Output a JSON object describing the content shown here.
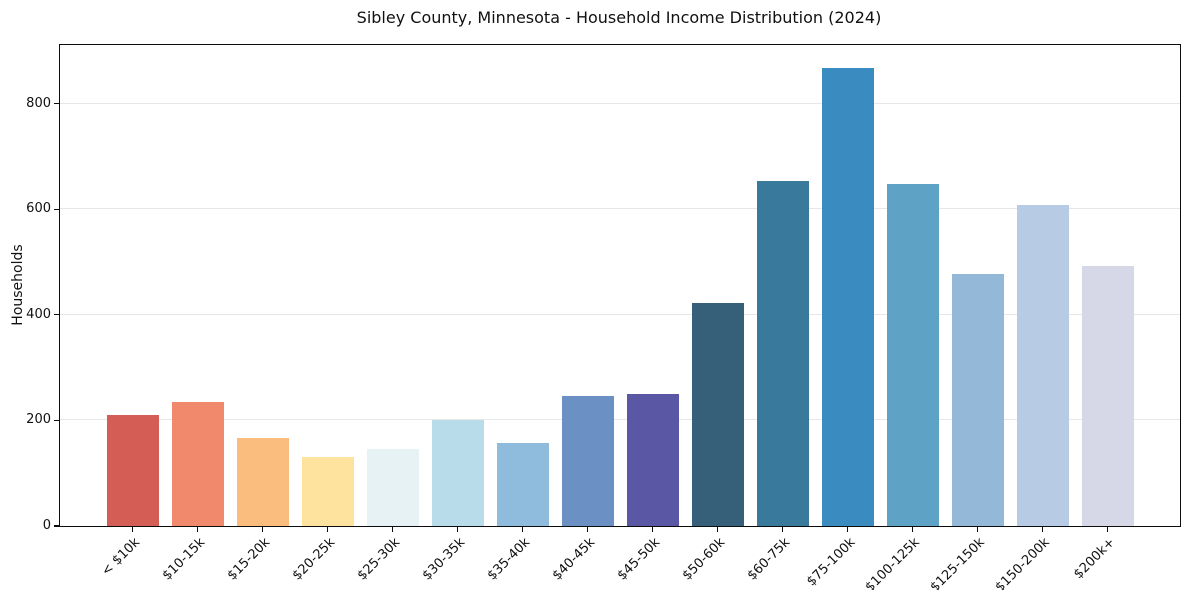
{
  "chart_data": {
    "type": "bar",
    "title": "Sibley County, Minnesota - Household Income Distribution (2024)",
    "xlabel": "",
    "ylabel": "Households",
    "categories": [
      "< $10k",
      "$10-15k",
      "$15-20k",
      "$20-25k",
      "$25-30k",
      "$30-35k",
      "$35-40k",
      "$40-45k",
      "$45-50k",
      "$50-60k",
      "$60-75k",
      "$75-100k",
      "$100-125k",
      "$125-150k",
      "$150-200k",
      "$200k+"
    ],
    "values": [
      211,
      235,
      166,
      131,
      146,
      201,
      158,
      246,
      250,
      423,
      654,
      868,
      648,
      478,
      608,
      492
    ],
    "bar_colors": [
      "#d45d56",
      "#f18a6c",
      "#fbbd7e",
      "#fde39e",
      "#e7f2f4",
      "#b9dcea",
      "#8fbcdc",
      "#6b91c4",
      "#5a58a5",
      "#36607a",
      "#38799c",
      "#3a8cc0",
      "#5ea3c6",
      "#93b8d8",
      "#b8cbe4",
      "#d6d8e7"
    ],
    "yticks": [
      0,
      200,
      400,
      600,
      800
    ],
    "ylim": [
      0,
      911
    ],
    "grid": "horizontal-only",
    "grid_color": "#e7e7e7",
    "legend": "none",
    "frame": "full-box"
  }
}
